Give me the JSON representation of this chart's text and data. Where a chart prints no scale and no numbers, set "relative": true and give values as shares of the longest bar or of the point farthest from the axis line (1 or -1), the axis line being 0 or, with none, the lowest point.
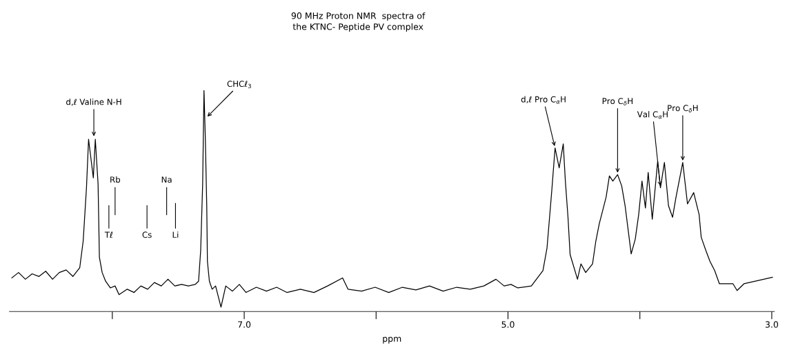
{
  "chart_data": {
    "type": "line",
    "title": "90 MHz Proton NMR  spectra of\nthe KTNC- Peptide PV complex",
    "xlabel": "ppm",
    "relative": true,
    "grid": false,
    "marker": "none",
    "line_style": "solid",
    "xlim": [
      8.78,
      2.98
    ],
    "xticks": [
      {
        "value": 8,
        "label": null
      },
      {
        "value": 7,
        "label": "7.0"
      },
      {
        "value": 6,
        "label": null
      },
      {
        "value": 5,
        "label": "5.0"
      },
      {
        "value": 4,
        "label": null
      },
      {
        "value": 3,
        "label": "3.0"
      }
    ],
    "series": [
      {
        "color": "#000000",
        "x": [
          8.762,
          8.711,
          8.659,
          8.608,
          8.556,
          8.505,
          8.453,
          8.402,
          8.35,
          8.299,
          8.247,
          8.221,
          8.196,
          8.18,
          8.144,
          8.129,
          8.108,
          8.098,
          8.077,
          8.051,
          8.015,
          7.979,
          7.949,
          7.887,
          7.835,
          7.784,
          7.732,
          7.681,
          7.629,
          7.578,
          7.526,
          7.475,
          7.423,
          7.372,
          7.346,
          7.33,
          7.315,
          7.305,
          7.295,
          7.284,
          7.279,
          7.264,
          7.243,
          7.217,
          7.176,
          7.14,
          7.089,
          7.037,
          6.986,
          6.908,
          6.831,
          6.754,
          6.677,
          6.574,
          6.471,
          6.368,
          6.254,
          6.213,
          6.11,
          6.007,
          5.904,
          5.801,
          5.698,
          5.595,
          5.492,
          5.389,
          5.286,
          5.183,
          5.091,
          5.029,
          4.977,
          4.926,
          4.823,
          4.735,
          4.704,
          4.668,
          4.643,
          4.612,
          4.581,
          4.565,
          4.545,
          4.529,
          4.473,
          4.447,
          4.411,
          4.359,
          4.334,
          4.308,
          4.282,
          4.256,
          4.231,
          4.205,
          4.169,
          4.138,
          4.112,
          4.066,
          4.035,
          4.009,
          3.984,
          3.958,
          3.937,
          3.906,
          3.865,
          3.844,
          3.814,
          3.783,
          3.752,
          3.726,
          3.675,
          3.639,
          3.592,
          3.551,
          3.535,
          3.5,
          3.469,
          3.433,
          3.397,
          3.294,
          3.263,
          3.211,
          3.124,
          2.995
        ],
        "values": [
          0.135,
          0.16,
          0.129,
          0.154,
          0.142,
          0.166,
          0.129,
          0.16,
          0.172,
          0.142,
          0.182,
          0.305,
          0.551,
          0.775,
          0.597,
          0.775,
          0.569,
          0.231,
          0.16,
          0.12,
          0.089,
          0.098,
          0.058,
          0.083,
          0.068,
          0.098,
          0.083,
          0.114,
          0.098,
          0.129,
          0.098,
          0.105,
          0.098,
          0.105,
          0.12,
          0.262,
          0.569,
          1,
          0.785,
          0.468,
          0.212,
          0.12,
          0.083,
          0.098,
          0,
          0.098,
          0.074,
          0.105,
          0.068,
          0.092,
          0.074,
          0.092,
          0.068,
          0.083,
          0.068,
          0.098,
          0.135,
          0.083,
          0.074,
          0.092,
          0.068,
          0.092,
          0.08,
          0.098,
          0.074,
          0.092,
          0.083,
          0.098,
          0.129,
          0.098,
          0.105,
          0.089,
          0.098,
          0.169,
          0.274,
          0.538,
          0.735,
          0.643,
          0.754,
          0.582,
          0.415,
          0.243,
          0.129,
          0.2,
          0.16,
          0.2,
          0.305,
          0.385,
          0.446,
          0.508,
          0.606,
          0.582,
          0.612,
          0.56,
          0.468,
          0.246,
          0.314,
          0.428,
          0.582,
          0.458,
          0.622,
          0.406,
          0.674,
          0.551,
          0.668,
          0.468,
          0.415,
          0.508,
          0.668,
          0.477,
          0.529,
          0.428,
          0.323,
          0.262,
          0.212,
          0.169,
          0.108,
          0.108,
          0.077,
          0.108,
          0.12,
          0.138
        ]
      }
    ],
    "annotations": [
      {
        "text": "d,ℓ Valine N-H",
        "x": 8.14,
        "y": 0.785
      },
      {
        "text": "CHCℓ$_{3}$",
        "x": 7.284,
        "y": 0.877
      },
      {
        "text": "d,ℓ Pro C$_{α}$H",
        "x": 4.643,
        "y": 0.735
      },
      {
        "text": "Pro C$_{δ}$H",
        "x": 4.169,
        "y": 0.612
      },
      {
        "text": "Val C$_{α}$H",
        "x": 3.844,
        "y": 0.551
      },
      {
        "text": "Pro C$_{δ}$H",
        "x": 3.675,
        "y": 0.668
      }
    ],
    "ref_lines": [
      {
        "axis": "x",
        "value": 8.026,
        "label": "Tℓ"
      },
      {
        "axis": "x",
        "value": 7.979,
        "label": "Rb"
      },
      {
        "axis": "x",
        "value": 7.737,
        "label": "Cs"
      },
      {
        "axis": "x",
        "value": 7.588,
        "label": "Na"
      },
      {
        "axis": "x",
        "value": 7.521,
        "label": "Li"
      }
    ]
  }
}
